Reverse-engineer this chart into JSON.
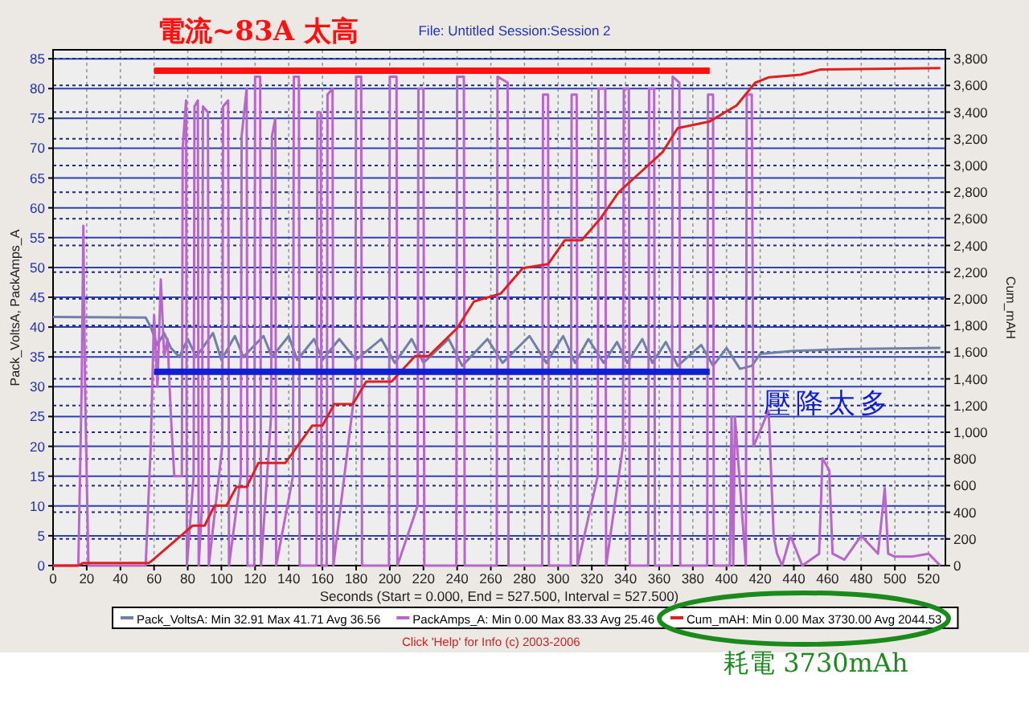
{
  "chart_data": {
    "type": "line",
    "title": "File: Untitled   Session:Session 2",
    "xlabel": "Seconds (Start = 0.000, End = 527.500, Interval = 527.500)",
    "ylabel": "Pack_VoltsA, PackAmps_A",
    "y2label": "Cum_mAH",
    "xlim": [
      0,
      530
    ],
    "xticks": [
      0,
      20,
      40,
      60,
      80,
      100,
      120,
      140,
      160,
      180,
      200,
      220,
      240,
      260,
      280,
      300,
      320,
      340,
      360,
      380,
      400,
      420,
      440,
      460,
      480,
      500,
      520
    ],
    "ylim": [
      0,
      86.5
    ],
    "yticks": [
      0,
      5,
      10,
      15,
      20,
      25,
      30,
      35,
      40,
      45,
      50,
      55,
      60,
      65,
      70,
      75,
      80,
      85
    ],
    "y2lim": [
      0,
      3867
    ],
    "y2ticks": [
      0,
      200,
      400,
      600,
      800,
      {
        "value": 1000,
        "label": "1,000"
      },
      {
        "value": 1200,
        "label": "1,200"
      },
      {
        "value": 1400,
        "label": "1,400"
      },
      {
        "value": 1600,
        "label": "1,600"
      },
      {
        "value": 1800,
        "label": "1,800"
      },
      {
        "value": 2000,
        "label": "2,000"
      },
      {
        "value": 2200,
        "label": "2,200"
      },
      {
        "value": 2400,
        "label": "2,400"
      },
      {
        "value": 2600,
        "label": "2,600"
      },
      {
        "value": 2800,
        "label": "2,800"
      },
      {
        "value": 3000,
        "label": "3,000"
      },
      {
        "value": 3200,
        "label": "3,200"
      },
      {
        "value": 3400,
        "label": "3,400"
      },
      {
        "value": 3600,
        "label": "3,600"
      },
      {
        "value": 3800,
        "label": "3,800"
      }
    ],
    "grid": true,
    "legend": "bottom",
    "series": [
      {
        "name": "Pack_VoltsA:  Min 32.91  Max 41.71  Avg 36.56",
        "color": "#7080a8",
        "x": [
          0,
          55,
          58,
          62,
          66,
          70,
          75,
          80,
          85,
          95,
          100,
          108,
          113,
          125,
          130,
          140,
          145,
          155,
          160,
          170,
          180,
          195,
          203,
          213,
          220,
          235,
          243,
          258,
          267,
          283,
          293,
          303,
          310,
          318,
          327,
          335,
          341,
          350,
          356,
          364,
          371,
          385,
          392,
          400,
          408,
          415,
          420,
          440,
          470,
          527
        ],
        "values": [
          41.7,
          41.6,
          40,
          37,
          39,
          36.5,
          35,
          38,
          35,
          39,
          34.5,
          38.5,
          35,
          38.5,
          35,
          38.5,
          34.5,
          38,
          34.5,
          38,
          34.5,
          38,
          34,
          38,
          34,
          38,
          33.5,
          38,
          34,
          38.5,
          34,
          38.5,
          34,
          38,
          34,
          37.5,
          34,
          38,
          34,
          37.5,
          33.5,
          37,
          33.5,
          36.5,
          33,
          33.5,
          35.5,
          36,
          36.3,
          36.5
        ]
      },
      {
        "name": "PackAmps_A:  Min 0.00  Max 83.33  Avg 25.46",
        "color": "#b865cc",
        "x": [
          0,
          15,
          17,
          18,
          19,
          21,
          55,
          58,
          60,
          62,
          64,
          66,
          68,
          70,
          72,
          76.5,
          77,
          79,
          79.5,
          83.5,
          84,
          86,
          86.5,
          88.5,
          89,
          92,
          92.5,
          100.5,
          101,
          104,
          104.5,
          111.5,
          112,
          115,
          115.5,
          119.5,
          120,
          123,
          123.5,
          129.5,
          130,
          132,
          132.5,
          142.5,
          143,
          146,
          146.5,
          156.5,
          157,
          159,
          159.5,
          162.5,
          163,
          166,
          166.5,
          179.5,
          180,
          183,
          183.5,
          199.5,
          200,
          204,
          204.5,
          216.5,
          217,
          220,
          220.5,
          239.5,
          240,
          244,
          244.5,
          263.5,
          264,
          270,
          270.5,
          290.5,
          291,
          294,
          294.5,
          307.5,
          308,
          311,
          311.5,
          323.5,
          324,
          328,
          328.5,
          338.5,
          339,
          342,
          342.5,
          353.5,
          354,
          357,
          357.5,
          367.5,
          368,
          372,
          372.5,
          388.5,
          389,
          392,
          392.5,
          402,
          403,
          404,
          405,
          411.5,
          412,
          415,
          416,
          425,
          428,
          430,
          433,
          438,
          445,
          455,
          457,
          461,
          463,
          470,
          480,
          490,
          494,
          496,
          500,
          510,
          520,
          527
        ],
        "values": [
          0,
          0,
          30,
          57,
          30,
          0,
          0,
          20,
          42,
          30,
          48,
          35,
          38,
          25,
          15,
          15,
          70,
          78,
          0,
          15,
          77,
          78,
          0,
          10,
          77,
          76,
          0,
          20,
          77,
          78,
          0,
          15,
          72,
          80,
          0,
          0,
          82,
          82,
          0,
          25,
          72,
          75,
          0,
          15,
          82,
          82,
          0,
          0,
          76,
          76,
          0,
          0,
          79,
          80,
          0,
          30,
          82,
          82,
          0,
          0,
          82,
          82,
          0,
          10,
          80,
          80,
          0,
          0,
          82,
          82,
          0,
          0,
          82,
          81,
          0,
          0,
          79,
          79,
          0,
          0,
          79,
          79,
          0,
          15,
          80,
          80,
          0,
          20,
          80,
          80,
          0,
          0,
          80,
          80,
          0,
          0,
          82,
          81,
          0,
          0,
          79,
          79,
          0,
          0,
          25,
          0,
          25,
          0,
          79,
          79,
          20,
          26,
          5,
          2,
          0,
          5,
          0,
          2,
          18,
          16,
          2,
          1,
          5,
          2,
          13,
          2,
          1.5,
          1.5,
          2,
          0
        ]
      },
      {
        "name": "Cum_mAH:  Min 0.00  Max 3730.00  Avg 2044.53",
        "color": "#e02020",
        "axis": "y2",
        "x": [
          0,
          15,
          18,
          57,
          59,
          83,
          90,
          96,
          103,
          109,
          115,
          122,
          138,
          154,
          160,
          167,
          178,
          186,
          201,
          215,
          223,
          240,
          250,
          266,
          279,
          294,
          304,
          314,
          325,
          336,
          349,
          362,
          371,
          390,
          406,
          417,
          425,
          444,
          456,
          527
        ],
        "values": [
          0,
          0,
          20,
          20,
          40,
          300,
          300,
          450,
          450,
          590,
          590,
          770,
          770,
          1050,
          1050,
          1210,
          1210,
          1380,
          1380,
          1570,
          1570,
          1780,
          1980,
          2040,
          2230,
          2260,
          2440,
          2440,
          2600,
          2800,
          2950,
          3100,
          3280,
          3330,
          3450,
          3620,
          3660,
          3680,
          3720,
          3730
        ]
      }
    ],
    "ref_lines": [
      {
        "axis": "y",
        "value": 83,
        "label": "電流~83A 太高",
        "color": "#ff1010"
      },
      {
        "axis": "y",
        "value": 32.5,
        "label": "壓降太多",
        "color": "#1020d0"
      }
    ],
    "annotations": [
      "Click 'Help' for Info  (c) 2003-2006",
      "耗電 3730mAh"
    ]
  }
}
